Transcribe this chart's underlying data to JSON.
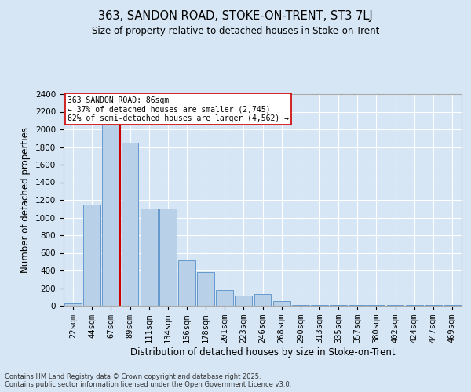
{
  "title1": "363, SANDON ROAD, STOKE-ON-TRENT, ST3 7LJ",
  "title2": "Size of property relative to detached houses in Stoke-on-Trent",
  "xlabel": "Distribution of detached houses by size in Stoke-on-Trent",
  "ylabel": "Number of detached properties",
  "categories": [
    "22sqm",
    "44sqm",
    "67sqm",
    "89sqm",
    "111sqm",
    "134sqm",
    "156sqm",
    "178sqm",
    "201sqm",
    "223sqm",
    "246sqm",
    "268sqm",
    "290sqm",
    "313sqm",
    "335sqm",
    "357sqm",
    "380sqm",
    "402sqm",
    "424sqm",
    "447sqm",
    "469sqm"
  ],
  "values": [
    25,
    1150,
    2100,
    1850,
    1100,
    1100,
    520,
    380,
    175,
    115,
    130,
    50,
    10,
    10,
    5,
    5,
    5,
    5,
    5,
    5,
    5
  ],
  "bar_color": "#b8d0e8",
  "bar_edge_color": "#6699cc",
  "vline_color": "#cc0000",
  "vline_pos": 2.5,
  "annotation_title": "363 SANDON ROAD: 86sqm",
  "annotation_line1": "← 37% of detached houses are smaller (2,745)",
  "annotation_line2": "62% of semi-detached houses are larger (4,562) →",
  "annotation_box_facecolor": "#ffffff",
  "annotation_box_edgecolor": "#cc0000",
  "ylim_max": 2400,
  "yticks": [
    0,
    200,
    400,
    600,
    800,
    1000,
    1200,
    1400,
    1600,
    1800,
    2000,
    2200,
    2400
  ],
  "bg_color": "#d6e6f5",
  "grid_color": "#ffffff",
  "footer_line1": "Contains HM Land Registry data © Crown copyright and database right 2025.",
  "footer_line2": "Contains public sector information licensed under the Open Government Licence v3.0."
}
